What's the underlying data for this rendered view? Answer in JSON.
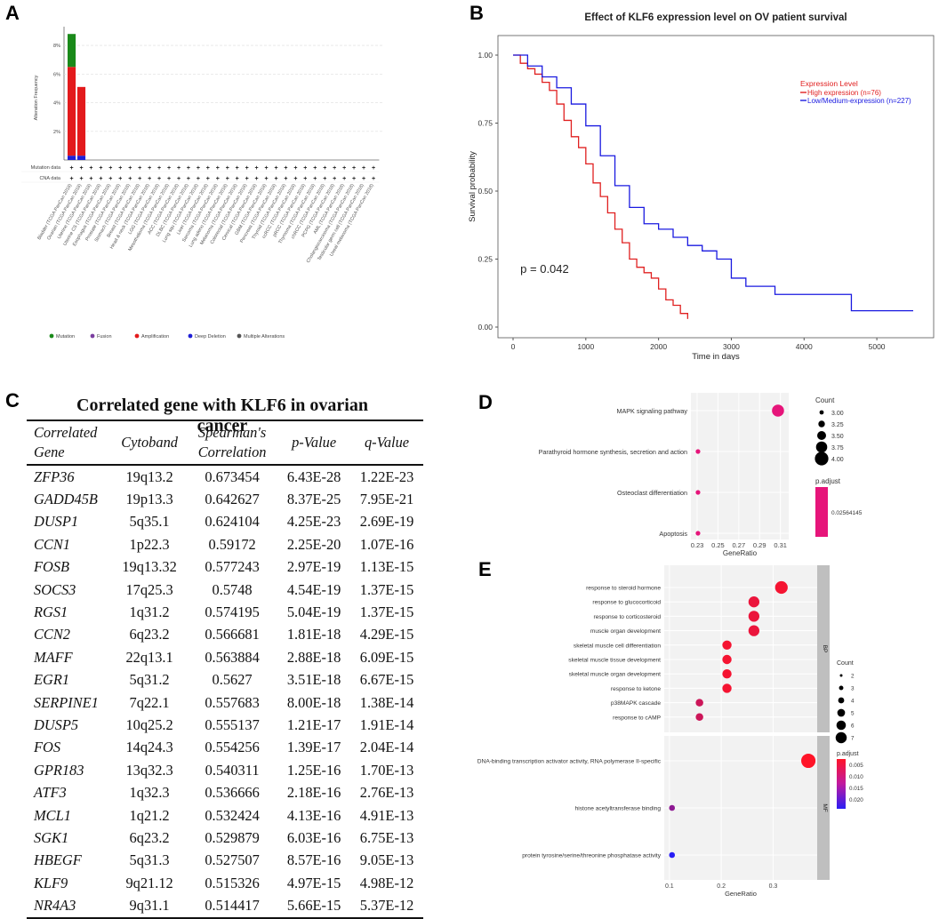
{
  "panels": {
    "a": "A",
    "b": "B",
    "c": "C",
    "d": "D",
    "e": "E"
  },
  "chart_data": [
    {
      "panel": "A",
      "type": "bar",
      "ylabel": "Alteration Frequency",
      "yticks": [
        "2%",
        "4%",
        "6%",
        "8%"
      ],
      "ylim": [
        0,
        9
      ],
      "row_labels": [
        "Mutation data",
        "CNA data"
      ],
      "row_marker": "+",
      "categories": [
        "Bladder (TCGA PanCan 2018)",
        "Ovarian (TCGA PanCan 2018)",
        "Uterine (TCGA PanCan 2018)",
        "Uterine CS (TCGA PanCan 2018)",
        "Esophagus (TCGA PanCan 2018)",
        "Prostate (TCGA PanCan 2018)",
        "Stomach (TCGA PanCan 2018)",
        "Breast (TCGA PanCan 2018)",
        "Head & neck (TCGA PanCan 2018)",
        "LGG (TCGA PanCan 2018)",
        "Mesothelioma (TCGA PanCan 2018)",
        "ACC (TCGA PanCan 2018)",
        "DLBC (TCGA PanCan 2018)",
        "Lung squ (TCGA PanCan 2018)",
        "Liver (TCGA PanCan 2018)",
        "Sarcoma (TCGA PanCan 2018)",
        "Lung adeno (TCGA PanCan 2018)",
        "Melanoma (TCGA PanCan 2018)",
        "Colorectal (TCGA PanCan 2018)",
        "Cervical (TCGA PanCan 2018)",
        "GBM (TCGA PanCan 2018)",
        "Pancreas (TCGA PanCan 2018)",
        "Thyroid (TCGA PanCan 2018)",
        "ccRCC (TCGA PanCan 2018)",
        "pRCC (TCGA PanCan 2018)",
        "Thymoma (TCGA PanCan 2018)",
        "chRCC (TCGA PanCan 2018)",
        "PCPG (TCGA PanCan 2018)",
        "AML (TCGA PanCan 2018)",
        "Cholangiocarcinoma (TCGA PanCan 2018)",
        "Testicular germ cell (TCGA PanCan 2018)",
        "Uveal melanoma (TCGA PanCan 2018)"
      ],
      "series": [
        {
          "name": "Mutation",
          "color": "#1a8a1a",
          "values": [
            2.3,
            0,
            0,
            0,
            0,
            0,
            0,
            0,
            0,
            0,
            0,
            0,
            0,
            0,
            0,
            0,
            0,
            0,
            0,
            0,
            0,
            0,
            0,
            0,
            0,
            0,
            0,
            0,
            0,
            0,
            0,
            0
          ]
        },
        {
          "name": "Fusion",
          "color": "#7b3fa0",
          "values": [
            0,
            0,
            0,
            0,
            0,
            0,
            0,
            0,
            0,
            0,
            0,
            0,
            0,
            0,
            0,
            0,
            0,
            0,
            0,
            0,
            0,
            0,
            0,
            0,
            0,
            0,
            0,
            0,
            0,
            0,
            0,
            0
          ]
        },
        {
          "name": "Amplification",
          "color": "#e31a1c",
          "values": [
            6.2,
            4.8,
            0,
            0,
            0,
            0,
            0,
            0,
            0,
            0,
            0,
            0,
            0,
            0,
            0,
            0,
            0,
            0,
            0,
            0,
            0,
            0,
            0,
            0,
            0,
            0,
            0,
            0,
            0,
            0,
            0,
            0
          ]
        },
        {
          "name": "Deep Deletion",
          "color": "#1f1fd6",
          "values": [
            0.3,
            0.3,
            0,
            0,
            0,
            0,
            0,
            0,
            0,
            0,
            0,
            0,
            0,
            0,
            0,
            0,
            0,
            0,
            0,
            0,
            0,
            0,
            0,
            0,
            0,
            0,
            0,
            0,
            0,
            0,
            0,
            0
          ]
        },
        {
          "name": "Multiple Alterations",
          "color": "#555555",
          "values": [
            0,
            0,
            0,
            0,
            0,
            0,
            0,
            0,
            0,
            0,
            0,
            0,
            0,
            0,
            0,
            0,
            0,
            0,
            0,
            0,
            0,
            0,
            0,
            0,
            0,
            0,
            0,
            0,
            0,
            0,
            0,
            0
          ]
        }
      ],
      "legend": [
        "Mutation",
        "Fusion",
        "Amplification",
        "Deep Deletion",
        "Multiple Alterations"
      ]
    },
    {
      "panel": "B",
      "type": "line",
      "title": "Effect of KLF6 expression level on OV patient survival",
      "xlabel": "Time in days",
      "ylabel": "Survival probability",
      "xlim": [
        0,
        5600
      ],
      "ylim": [
        0,
        1.05
      ],
      "xticks": [
        0,
        1000,
        2000,
        3000,
        4000,
        5000
      ],
      "yticks": [
        "0.00",
        "0.25",
        "0.50",
        "0.75",
        "1.00"
      ],
      "legend_title": "Expression Level",
      "annotation": "p = 0.042",
      "series": [
        {
          "name": "High expression (n=76)",
          "color": "#e02020",
          "x": [
            0,
            100,
            200,
            300,
            400,
            500,
            600,
            700,
            800,
            900,
            1000,
            1100,
            1200,
            1300,
            1400,
            1500,
            1600,
            1700,
            1800,
            1900,
            2000,
            2100,
            2200,
            2300,
            2400
          ],
          "y": [
            1.0,
            0.97,
            0.95,
            0.93,
            0.9,
            0.87,
            0.82,
            0.76,
            0.7,
            0.66,
            0.6,
            0.53,
            0.48,
            0.42,
            0.36,
            0.31,
            0.25,
            0.22,
            0.2,
            0.18,
            0.14,
            0.1,
            0.08,
            0.05,
            0.03
          ]
        },
        {
          "name": "Low/Medium-expression (n=227)",
          "color": "#1a1ae0",
          "x": [
            0,
            200,
            400,
            600,
            800,
            1000,
            1200,
            1400,
            1600,
            1800,
            2000,
            2200,
            2400,
            2600,
            2800,
            3000,
            3200,
            3400,
            3600,
            4000,
            4400,
            4600,
            4650,
            5000,
            5500
          ],
          "y": [
            1.0,
            0.96,
            0.92,
            0.88,
            0.82,
            0.74,
            0.63,
            0.52,
            0.44,
            0.38,
            0.36,
            0.33,
            0.3,
            0.28,
            0.25,
            0.18,
            0.15,
            0.15,
            0.12,
            0.12,
            0.12,
            0.12,
            0.06,
            0.06,
            0.06
          ]
        }
      ]
    },
    {
      "panel": "D",
      "type": "scatter",
      "xlabel": "GeneRatio",
      "xticks": [
        "0.23",
        "0.25",
        "0.27",
        "0.29",
        "0.31"
      ],
      "xlim": [
        0.224,
        0.318
      ],
      "categories": [
        "MAPK signaling pathway",
        "Parathyroid hormone synthesis, secretion and action",
        "Osteoclast differentiation",
        "Apoptosis"
      ],
      "x": [
        0.3077,
        0.2308,
        0.2308,
        0.2308
      ],
      "count": [
        4,
        3,
        3,
        3
      ],
      "p_adjust": [
        0.02564145,
        0.02564145,
        0.02564145,
        0.02564145
      ],
      "legend_count_title": "Count",
      "legend_count_labels": [
        "3.00",
        "3.25",
        "3.50",
        "3.75",
        "4.00"
      ],
      "legend_color_title": "p.adjust",
      "legend_color_label": "0.02564145"
    },
    {
      "panel": "E",
      "type": "scatter",
      "xlabel": "GeneRatio",
      "xticks": [
        "0.1",
        "0.2",
        "0.3"
      ],
      "xlim": [
        0.09,
        0.385
      ],
      "facets": [
        {
          "name": "BP",
          "categories": [
            "response to steroid hormone",
            "response to glucocorticoid",
            "response to corticosteroid",
            "muscle organ development",
            "skeletal muscle cell differentiation",
            "skeletal muscle tissue development",
            "skeletal muscle organ development",
            "response to ketone",
            "p38MAPK cascade",
            "response to cAMP"
          ],
          "x": [
            0.316,
            0.263,
            0.263,
            0.263,
            0.211,
            0.211,
            0.211,
            0.211,
            0.158,
            0.158
          ],
          "count": [
            6,
            5,
            5,
            5,
            4,
            4,
            4,
            4,
            3,
            3
          ],
          "p_adjust": [
            0.002,
            0.003,
            0.003,
            0.003,
            0.002,
            0.002,
            0.002,
            0.002,
            0.006,
            0.006
          ]
        },
        {
          "name": "MF",
          "categories": [
            "DNA-binding transcription activator activity, RNA polymerase II-specific",
            "histone acetyltransferase binding",
            "protein tyrosine/serine/threonine phosphatase activity"
          ],
          "x": [
            0.368,
            0.105,
            0.105
          ],
          "count": [
            7,
            2,
            2
          ],
          "p_adjust": [
            0.001,
            0.012,
            0.022
          ]
        }
      ],
      "legend_count_title": "Count",
      "legend_count_labels": [
        "2",
        "3",
        "4",
        "5",
        "6",
        "7"
      ],
      "legend_color_title": "p.adjust",
      "legend_color_labels": [
        "0.005",
        "0.010",
        "0.015",
        "0.020"
      ]
    }
  ],
  "table": {
    "title": "Correlated gene with KLF6 in ovarian cancer",
    "headers": [
      "Correlated Gene",
      "Cytoband",
      "Spearman's Correlation",
      "p-Value",
      "q-Value"
    ],
    "rows": [
      [
        "ZFP36",
        "19q13.2",
        "0.673454",
        "6.43E-28",
        "1.22E-23"
      ],
      [
        "GADD45B",
        "19p13.3",
        "0.642627",
        "8.37E-25",
        "7.95E-21"
      ],
      [
        "DUSP1",
        "5q35.1",
        "0.624104",
        "4.25E-23",
        "2.69E-19"
      ],
      [
        "CCN1",
        "1p22.3",
        "0.59172",
        "2.25E-20",
        "1.07E-16"
      ],
      [
        "FOSB",
        "19q13.32",
        "0.577243",
        "2.97E-19",
        "1.13E-15"
      ],
      [
        "SOCS3",
        "17q25.3",
        "0.5748",
        "4.54E-19",
        "1.37E-15"
      ],
      [
        "RGS1",
        "1q31.2",
        "0.574195",
        "5.04E-19",
        "1.37E-15"
      ],
      [
        "CCN2",
        "6q23.2",
        "0.566681",
        "1.81E-18",
        "4.29E-15"
      ],
      [
        "MAFF",
        "22q13.1",
        "0.563884",
        "2.88E-18",
        "6.09E-15"
      ],
      [
        "EGR1",
        "5q31.2",
        "0.5627",
        "3.51E-18",
        "6.67E-15"
      ],
      [
        "SERPINE1",
        "7q22.1",
        "0.557683",
        "8.00E-18",
        "1.38E-14"
      ],
      [
        "DUSP5",
        "10q25.2",
        "0.555137",
        "1.21E-17",
        "1.91E-14"
      ],
      [
        "FOS",
        "14q24.3",
        "0.554256",
        "1.39E-17",
        "2.04E-14"
      ],
      [
        "GPR183",
        "13q32.3",
        "0.540311",
        "1.25E-16",
        "1.70E-13"
      ],
      [
        "ATF3",
        "1q32.3",
        "0.536666",
        "2.18E-16",
        "2.76E-13"
      ],
      [
        "MCL1",
        "1q21.2",
        "0.532424",
        "4.13E-16",
        "4.91E-13"
      ],
      [
        "SGK1",
        "6q23.2",
        "0.529879",
        "6.03E-16",
        "6.75E-13"
      ],
      [
        "HBEGF",
        "5q31.3",
        "0.527507",
        "8.57E-16",
        "9.05E-13"
      ],
      [
        "KLF9",
        "9q21.12",
        "0.515326",
        "4.97E-15",
        "4.98E-12"
      ],
      [
        "NR4A3",
        "9q31.1",
        "0.514417",
        "5.66E-15",
        "5.37E-12"
      ]
    ]
  }
}
